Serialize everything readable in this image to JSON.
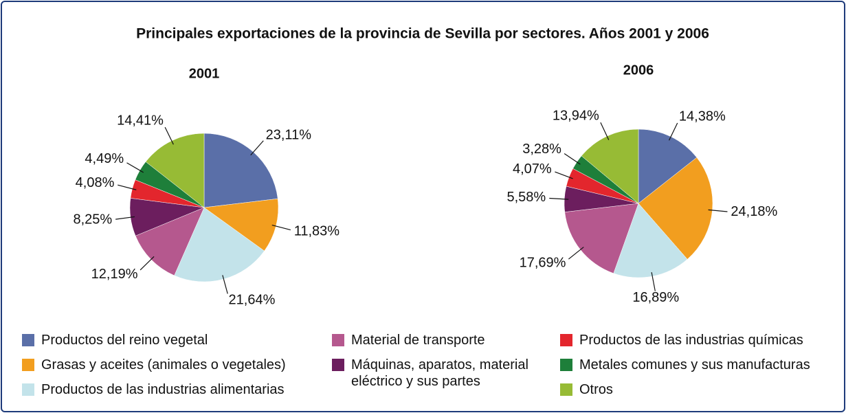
{
  "title": "Principales exportaciones de la provincia de Sevilla por sectores. Años 2001 y 2006",
  "legend": {
    "labels": [
      "Productos del reino vegetal",
      "Grasas y aceites (animales o vegetales)",
      "Productos de las industrias alimentarias",
      "Material de transporte",
      "Máquinas, aparatos, material eléctrico y sus partes",
      "Productos de las industrias químicas",
      "Metales comunes y sus manufacturas",
      "Otros"
    ],
    "colors": [
      "#5a6fa8",
      "#f29e1f",
      "#c3e3ea",
      "#b5588e",
      "#6c1e5e",
      "#e3262d",
      "#1e7f3a",
      "#97bb35"
    ]
  },
  "chart_data": [
    {
      "type": "pie",
      "title": "2001",
      "values": [
        23.11,
        11.83,
        21.64,
        12.19,
        8.25,
        4.08,
        4.49,
        14.41
      ],
      "value_labels": [
        "23,11%",
        "11,83%",
        "21,64%",
        "12,19%",
        "8,25%",
        "4,08%",
        "4,49%",
        "14,41%"
      ]
    },
    {
      "type": "pie",
      "title": "2006",
      "values": [
        14.38,
        24.18,
        16.89,
        17.69,
        5.58,
        4.07,
        3.28,
        13.94
      ],
      "value_labels": [
        "14,38%",
        "24,18%",
        "16,89%",
        "17,69%",
        "5,58%",
        "4,07%",
        "3,28%",
        "13,94%"
      ]
    }
  ]
}
